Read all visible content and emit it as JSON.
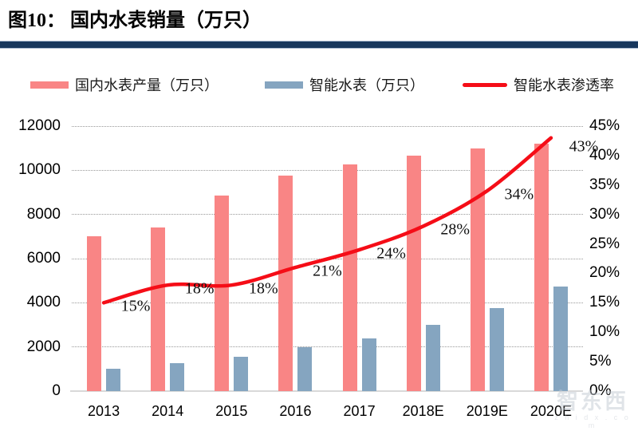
{
  "title": "图10： 国内水表销量（万只）",
  "watermark": {
    "text": "智东西",
    "subtext": "z h i d x . c o m"
  },
  "colors": {
    "title_rule": "#17375E",
    "title_rule_edge": "#A9BAD2",
    "production_bar": "#F98585",
    "smart_bar": "#85A5C0",
    "penetration_line": "#F50D17",
    "gridline": "#989898",
    "axis_line": "#D9D9D9",
    "text": "#000000"
  },
  "chart_data": {
    "type": "combo",
    "title": "图10： 国内水表销量（万只）",
    "categories": [
      "2013",
      "2014",
      "2015",
      "2016",
      "2017",
      "2018E",
      "2019E",
      "2020E"
    ],
    "series": [
      {
        "name": "国内水表产量（万只）",
        "type": "bar",
        "axis": "left",
        "color": "#F98585",
        "values": [
          7000,
          7400,
          8850,
          9750,
          10250,
          10650,
          11000,
          11200
        ]
      },
      {
        "name": "智能水表（万只）",
        "type": "bar",
        "axis": "left",
        "color": "#85A5C0",
        "values": [
          1000,
          1250,
          1550,
          2000,
          2400,
          3000,
          3750,
          4750
        ]
      },
      {
        "name": "智能水表渗透率",
        "type": "line",
        "axis": "right",
        "color": "#F50D17",
        "values": [
          15,
          18,
          18,
          21,
          24,
          28,
          34,
          43
        ],
        "labels": [
          "15%",
          "18%",
          "18%",
          "21%",
          "24%",
          "28%",
          "34%",
          "43%"
        ]
      }
    ],
    "left_axis": {
      "min": 0,
      "max": 12000,
      "step": 2000,
      "ticks": [
        "0",
        "2000",
        "4000",
        "6000",
        "8000",
        "10000",
        "12000"
      ]
    },
    "right_axis": {
      "min": 0,
      "max": 45,
      "step": 5,
      "ticks": [
        "0%",
        "5%",
        "10%",
        "15%",
        "20%",
        "25%",
        "30%",
        "35%",
        "40%",
        "45%"
      ]
    },
    "grid": "horizontal-dotted",
    "legend_position": "top"
  }
}
